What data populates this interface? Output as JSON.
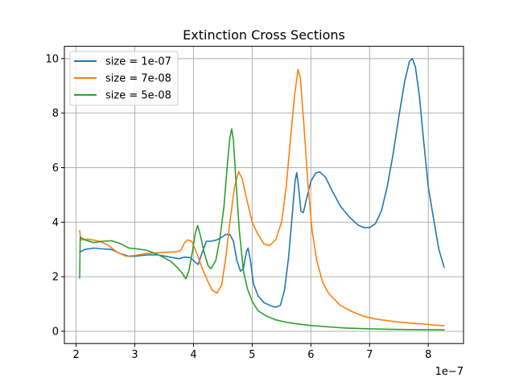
{
  "chart_data": {
    "type": "line",
    "title": "Extinction Cross Sections",
    "xlabel": "",
    "ylabel": "",
    "x_offset_label": "1e−7",
    "xlim": [
      1.8,
      8.6
    ],
    "ylim": [
      -0.45,
      10.45
    ],
    "x_ticks": [
      2,
      3,
      4,
      5,
      6,
      7,
      8
    ],
    "y_ticks": [
      0,
      2,
      4,
      6,
      8,
      10
    ],
    "grid": true,
    "legend_position": "upper-left",
    "series": [
      {
        "name": "size = 1e-07",
        "color": "#1f77b4",
        "points": [
          [
            2.06,
            2.9
          ],
          [
            2.15,
            3.0
          ],
          [
            2.3,
            3.05
          ],
          [
            2.45,
            3.02
          ],
          [
            2.6,
            3.0
          ],
          [
            2.75,
            2.85
          ],
          [
            2.9,
            2.75
          ],
          [
            3.0,
            2.75
          ],
          [
            3.2,
            2.8
          ],
          [
            3.4,
            2.8
          ],
          [
            3.6,
            2.72
          ],
          [
            3.75,
            2.66
          ],
          [
            3.85,
            2.72
          ],
          [
            3.95,
            2.7
          ],
          [
            4.02,
            2.55
          ],
          [
            4.08,
            2.45
          ],
          [
            4.15,
            2.9
          ],
          [
            4.22,
            3.3
          ],
          [
            4.3,
            3.3
          ],
          [
            4.4,
            3.35
          ],
          [
            4.48,
            3.45
          ],
          [
            4.55,
            3.55
          ],
          [
            4.62,
            3.55
          ],
          [
            4.68,
            3.3
          ],
          [
            4.74,
            2.6
          ],
          [
            4.8,
            2.2
          ],
          [
            4.85,
            2.3
          ],
          [
            4.9,
            2.9
          ],
          [
            4.93,
            3.05
          ],
          [
            4.97,
            2.6
          ],
          [
            5.02,
            1.75
          ],
          [
            5.1,
            1.3
          ],
          [
            5.2,
            1.05
          ],
          [
            5.3,
            0.95
          ],
          [
            5.4,
            0.88
          ],
          [
            5.48,
            0.95
          ],
          [
            5.55,
            1.5
          ],
          [
            5.62,
            2.7
          ],
          [
            5.68,
            4.2
          ],
          [
            5.73,
            5.5
          ],
          [
            5.76,
            5.82
          ],
          [
            5.79,
            5.3
          ],
          [
            5.83,
            4.4
          ],
          [
            5.87,
            4.35
          ],
          [
            5.92,
            4.8
          ],
          [
            6.0,
            5.5
          ],
          [
            6.08,
            5.8
          ],
          [
            6.15,
            5.85
          ],
          [
            6.25,
            5.65
          ],
          [
            6.35,
            5.2
          ],
          [
            6.5,
            4.6
          ],
          [
            6.65,
            4.2
          ],
          [
            6.8,
            3.9
          ],
          [
            6.9,
            3.8
          ],
          [
            7.0,
            3.8
          ],
          [
            7.1,
            3.95
          ],
          [
            7.2,
            4.4
          ],
          [
            7.3,
            5.3
          ],
          [
            7.4,
            6.5
          ],
          [
            7.5,
            7.9
          ],
          [
            7.6,
            9.2
          ],
          [
            7.68,
            9.9
          ],
          [
            7.73,
            10.0
          ],
          [
            7.78,
            9.7
          ],
          [
            7.85,
            8.6
          ],
          [
            7.92,
            7.0
          ],
          [
            8.0,
            5.3
          ],
          [
            8.1,
            4.0
          ],
          [
            8.18,
            3.0
          ],
          [
            8.27,
            2.35
          ]
        ]
      },
      {
        "name": "size = 7e-08",
        "color": "#ff7f0e",
        "points": [
          [
            2.06,
            3.7
          ],
          [
            2.08,
            3.35
          ],
          [
            2.2,
            3.38
          ],
          [
            2.4,
            3.3
          ],
          [
            2.55,
            3.15
          ],
          [
            2.7,
            2.9
          ],
          [
            2.85,
            2.75
          ],
          [
            3.0,
            2.78
          ],
          [
            3.2,
            2.85
          ],
          [
            3.4,
            2.88
          ],
          [
            3.6,
            2.9
          ],
          [
            3.72,
            2.92
          ],
          [
            3.78,
            2.95
          ],
          [
            3.85,
            3.25
          ],
          [
            3.9,
            3.35
          ],
          [
            3.97,
            3.3
          ],
          [
            4.05,
            2.9
          ],
          [
            4.15,
            2.3
          ],
          [
            4.25,
            1.8
          ],
          [
            4.32,
            1.5
          ],
          [
            4.4,
            1.4
          ],
          [
            4.48,
            1.7
          ],
          [
            4.55,
            2.7
          ],
          [
            4.62,
            4.0
          ],
          [
            4.7,
            5.3
          ],
          [
            4.77,
            5.85
          ],
          [
            4.83,
            5.6
          ],
          [
            4.9,
            4.9
          ],
          [
            5.0,
            4.0
          ],
          [
            5.1,
            3.55
          ],
          [
            5.2,
            3.2
          ],
          [
            5.3,
            3.15
          ],
          [
            5.4,
            3.35
          ],
          [
            5.5,
            4.0
          ],
          [
            5.58,
            5.3
          ],
          [
            5.65,
            7.0
          ],
          [
            5.72,
            8.6
          ],
          [
            5.78,
            9.6
          ],
          [
            5.82,
            9.3
          ],
          [
            5.88,
            7.6
          ],
          [
            5.95,
            5.4
          ],
          [
            6.02,
            3.7
          ],
          [
            6.1,
            2.6
          ],
          [
            6.2,
            1.8
          ],
          [
            6.3,
            1.4
          ],
          [
            6.5,
            0.95
          ],
          [
            6.7,
            0.72
          ],
          [
            6.9,
            0.55
          ],
          [
            7.1,
            0.45
          ],
          [
            7.4,
            0.36
          ],
          [
            7.7,
            0.3
          ],
          [
            8.0,
            0.25
          ],
          [
            8.27,
            0.2
          ]
        ]
      },
      {
        "name": "size = 5e-08",
        "color": "#2ca02c",
        "points": [
          [
            2.06,
            1.95
          ],
          [
            2.07,
            3.45
          ],
          [
            2.15,
            3.35
          ],
          [
            2.3,
            3.25
          ],
          [
            2.45,
            3.3
          ],
          [
            2.6,
            3.32
          ],
          [
            2.75,
            3.22
          ],
          [
            2.9,
            3.05
          ],
          [
            3.05,
            3.02
          ],
          [
            3.2,
            2.97
          ],
          [
            3.35,
            2.85
          ],
          [
            3.5,
            2.7
          ],
          [
            3.62,
            2.55
          ],
          [
            3.72,
            2.35
          ],
          [
            3.8,
            2.15
          ],
          [
            3.87,
            1.92
          ],
          [
            3.92,
            2.2
          ],
          [
            3.98,
            2.9
          ],
          [
            4.03,
            3.6
          ],
          [
            4.07,
            3.88
          ],
          [
            4.12,
            3.5
          ],
          [
            4.18,
            2.9
          ],
          [
            4.25,
            2.4
          ],
          [
            4.3,
            2.3
          ],
          [
            4.38,
            2.6
          ],
          [
            4.45,
            3.4
          ],
          [
            4.52,
            4.6
          ],
          [
            4.58,
            6.2
          ],
          [
            4.62,
            7.1
          ],
          [
            4.65,
            7.42
          ],
          [
            4.68,
            7.0
          ],
          [
            4.72,
            5.6
          ],
          [
            4.78,
            3.7
          ],
          [
            4.85,
            2.2
          ],
          [
            4.92,
            1.55
          ],
          [
            5.0,
            1.1
          ],
          [
            5.1,
            0.75
          ],
          [
            5.25,
            0.55
          ],
          [
            5.4,
            0.42
          ],
          [
            5.6,
            0.32
          ],
          [
            5.8,
            0.26
          ],
          [
            6.0,
            0.21
          ],
          [
            6.3,
            0.16
          ],
          [
            6.6,
            0.12
          ],
          [
            7.0,
            0.09
          ],
          [
            7.4,
            0.07
          ],
          [
            7.8,
            0.06
          ],
          [
            8.27,
            0.05
          ]
        ]
      }
    ]
  }
}
